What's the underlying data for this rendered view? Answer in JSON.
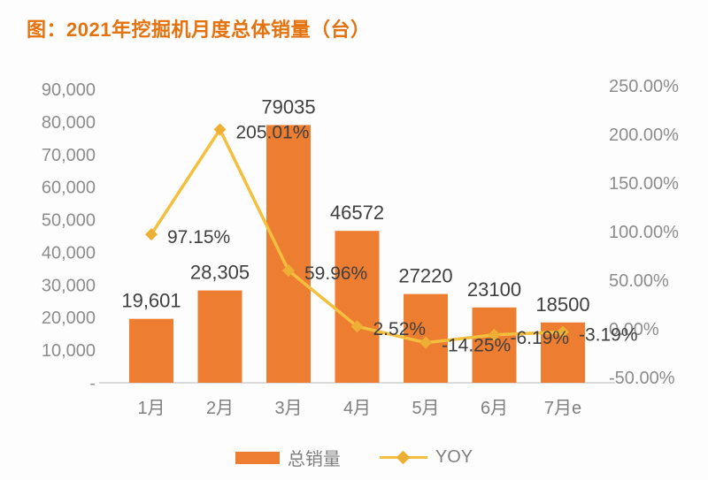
{
  "title": "图：2021年挖掘机月度总体销量（台）",
  "colors": {
    "title": "#E4720E",
    "bar": "#ED7D31",
    "line": "#F3BF3E",
    "marker": "#EEAF35",
    "data_label": "#3F3F3F",
    "axis_label": "#8C8C8C",
    "x_label": "#7F7F7F",
    "axis_line": "#DBDBDB",
    "background": "#FDFDFD"
  },
  "chart_data": {
    "type": "bar+line combo",
    "title": "图：2021年挖掘机月度总体销量（台）",
    "categories": [
      "1月",
      "2月",
      "3月",
      "4月",
      "5月",
      "6月",
      "7月e"
    ],
    "series": [
      {
        "name": "总销量",
        "type": "bar",
        "axis": "left",
        "values": [
          19601,
          28305,
          79035,
          46572,
          27220,
          23100,
          18500
        ],
        "labels": [
          "19,601",
          "28,305",
          "79035",
          "46572",
          "27220",
          "23100",
          "18500"
        ]
      },
      {
        "name": "YOY",
        "type": "line",
        "axis": "right",
        "values": [
          97.15,
          205.01,
          59.96,
          2.52,
          -14.25,
          -6.19,
          -3.19
        ],
        "labels": [
          "97.15%",
          "205.01%",
          "59.96%",
          "2.52%",
          "-14.25%",
          "-6.19%",
          "-3.19%"
        ]
      }
    ],
    "left_axis": {
      "min": 0,
      "max": 90000,
      "ticks": [
        {
          "label": "90,000",
          "value": 90000
        },
        {
          "label": "80,000",
          "value": 80000
        },
        {
          "label": "70,000",
          "value": 70000
        },
        {
          "label": "60,000",
          "value": 60000
        },
        {
          "label": "50,000",
          "value": 50000
        },
        {
          "label": "40,000",
          "value": 40000
        },
        {
          "label": "30,000",
          "value": 30000
        },
        {
          "label": "20,000",
          "value": 20000
        },
        {
          "label": "10,000",
          "value": 10000
        },
        {
          "label": "-",
          "value": 0
        }
      ]
    },
    "right_axis": {
      "min": -50,
      "max": 250,
      "ticks": [
        {
          "label": "250.00%",
          "value": 250
        },
        {
          "label": "200.00%",
          "value": 200
        },
        {
          "label": "150.00%",
          "value": 150
        },
        {
          "label": "100.00%",
          "value": 100
        },
        {
          "label": "50.00%",
          "value": 50
        },
        {
          "label": "0.00%",
          "value": 0
        },
        {
          "label": "-50.00%",
          "value": -50
        }
      ]
    },
    "grid": false,
    "legend_position": "bottom"
  }
}
